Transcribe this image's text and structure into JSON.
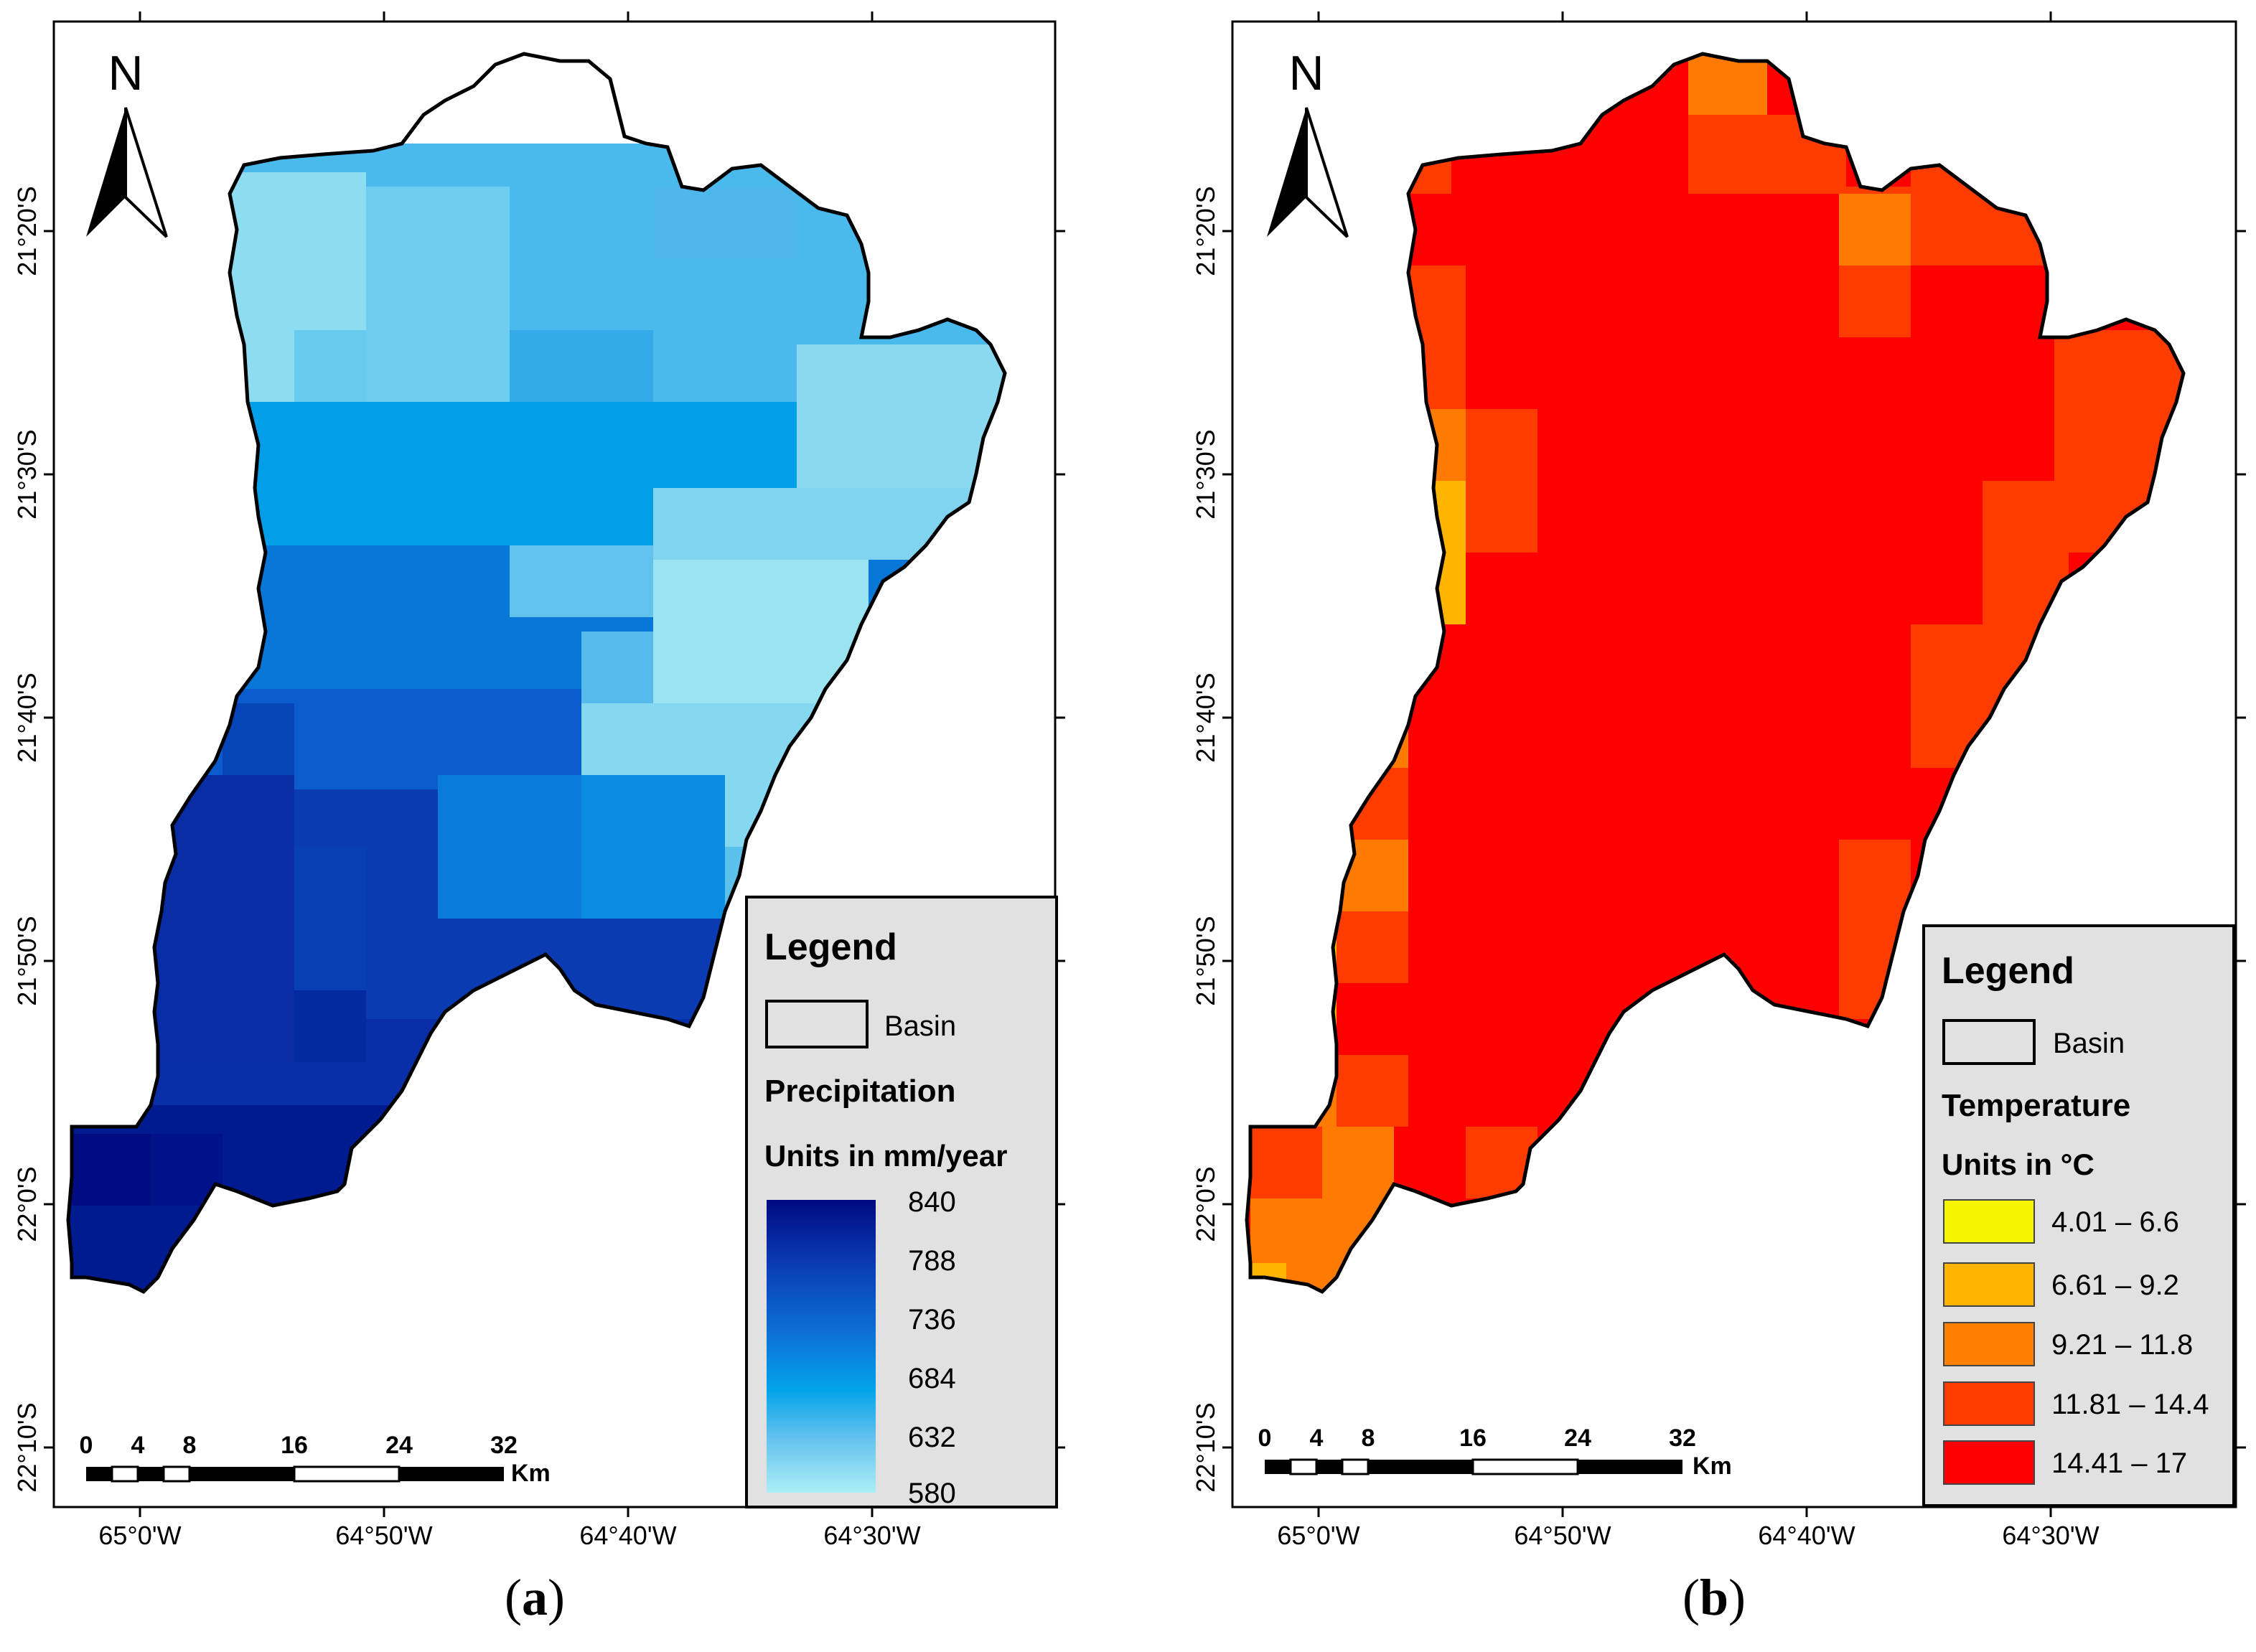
{
  "figure": {
    "panels": [
      {
        "id": "a",
        "label_open": "(",
        "label_letter": "a",
        "label_close": ")",
        "north_label": "N",
        "lat_labels": [
          "21°20'S",
          "21°30'S",
          "21°40'S",
          "21°50'S",
          "22°0'S",
          "22°10'S"
        ],
        "lon_labels": [
          "65°0'W",
          "64°50'W",
          "64°40'W",
          "64°30'W"
        ],
        "scale_ticks": [
          "0",
          "4",
          "8",
          "16",
          "24",
          "32"
        ],
        "scale_unit": "Km",
        "legend": {
          "title": "Legend",
          "basin_label": "Basin",
          "variable_title": "Precipitation",
          "units": "Units in mm/year",
          "ramp_labels": [
            "840",
            "788",
            "736",
            "684",
            "632",
            "580"
          ],
          "ramp_colors": [
            "#000a80",
            "#0a3cb5",
            "#0c6fd6",
            "#03a4ea",
            "#67c3ee",
            "#aaeef6"
          ]
        },
        "map_value_range": [
          580,
          840
        ]
      },
      {
        "id": "b",
        "label_open": "(",
        "label_letter": "b",
        "label_close": ")",
        "north_label": "N",
        "lat_labels": [
          "21°20'S",
          "21°30'S",
          "21°40'S",
          "21°50'S",
          "22°0'S",
          "22°10'S"
        ],
        "lon_labels": [
          "65°0'W",
          "64°50'W",
          "64°40'W",
          "64°30'W"
        ],
        "scale_ticks": [
          "0",
          "4",
          "8",
          "16",
          "24",
          "32"
        ],
        "scale_unit": "Km",
        "legend": {
          "title": "Legend",
          "basin_label": "Basin",
          "variable_title": "Temperature",
          "units": "Units in °C",
          "classes": [
            {
              "label": "4.01 – 6.6",
              "color": "#f5f500"
            },
            {
              "label": "6.61 – 9.2",
              "color": "#ffb400"
            },
            {
              "label": "9.21 – 11.8",
              "color": "#ff7f00"
            },
            {
              "label": "11.81 – 14.4",
              "color": "#ff3c00"
            },
            {
              "label": "14.41 – 17",
              "color": "#ff0000"
            }
          ]
        }
      }
    ]
  }
}
